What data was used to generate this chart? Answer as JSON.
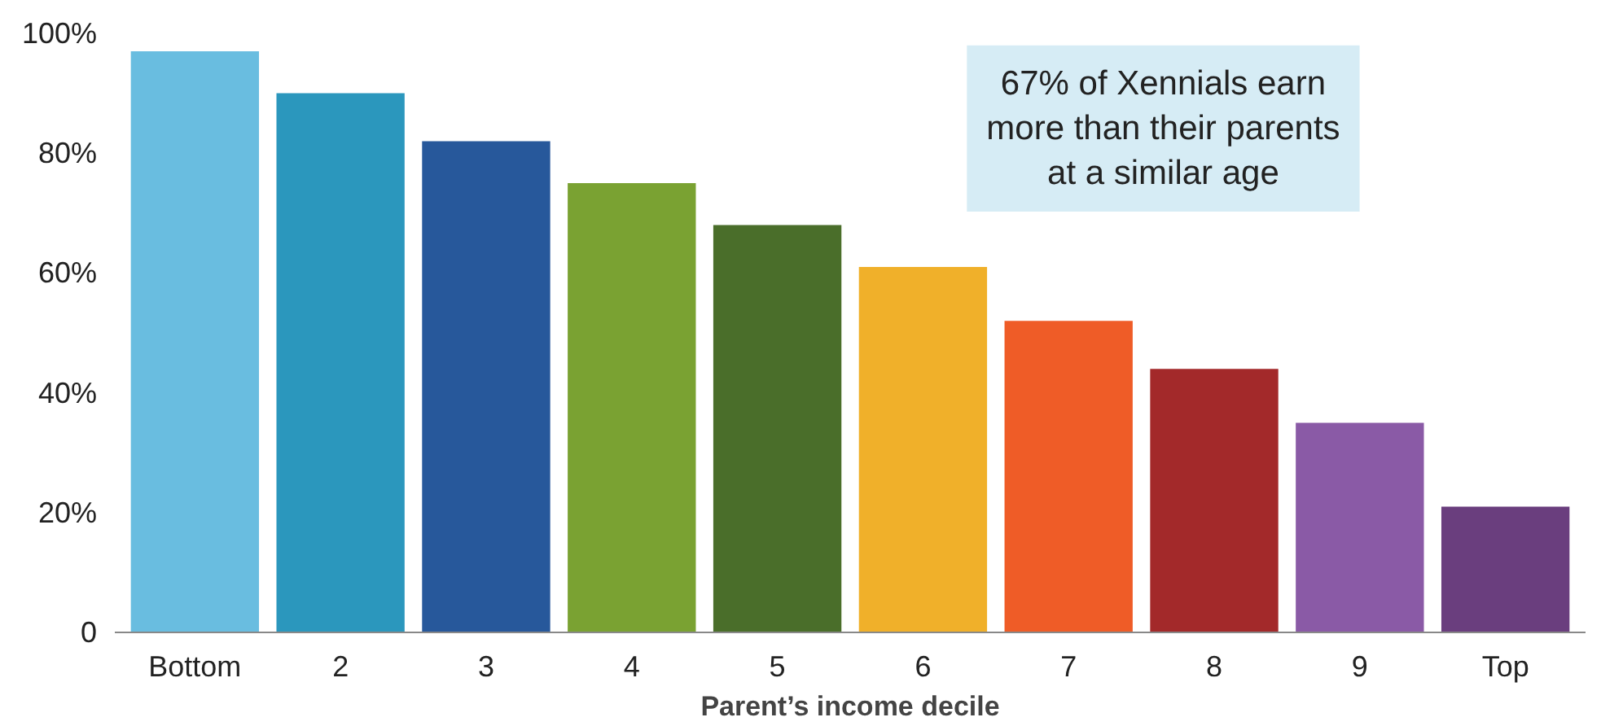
{
  "chart_data": {
    "type": "bar",
    "xlabel": "Parent’s income decile",
    "categories": [
      "Bottom",
      "2",
      "3",
      "4",
      "5",
      "6",
      "7",
      "8",
      "9",
      "Top"
    ],
    "values": [
      97,
      90,
      82,
      75,
      68,
      61,
      52,
      44,
      35,
      21
    ],
    "colors": [
      "#69bde0",
      "#2b97bd",
      "#27589b",
      "#7aa232",
      "#4a6e2a",
      "#f0b02a",
      "#ef5c27",
      "#a3292a",
      "#8a5aa6",
      "#6a3e7e"
    ],
    "ylim": [
      0,
      100
    ],
    "yticks": [
      {
        "value": 0,
        "label": "0"
      },
      {
        "value": 20,
        "label": "20%"
      },
      {
        "value": 40,
        "label": "40%"
      },
      {
        "value": 60,
        "label": "60%"
      },
      {
        "value": 80,
        "label": "80%"
      },
      {
        "value": 100,
        "label": "100%"
      }
    ],
    "grid": false,
    "annotations": [
      "67% of Xennials earn\nmore than their parents\nat a similar age"
    ]
  }
}
